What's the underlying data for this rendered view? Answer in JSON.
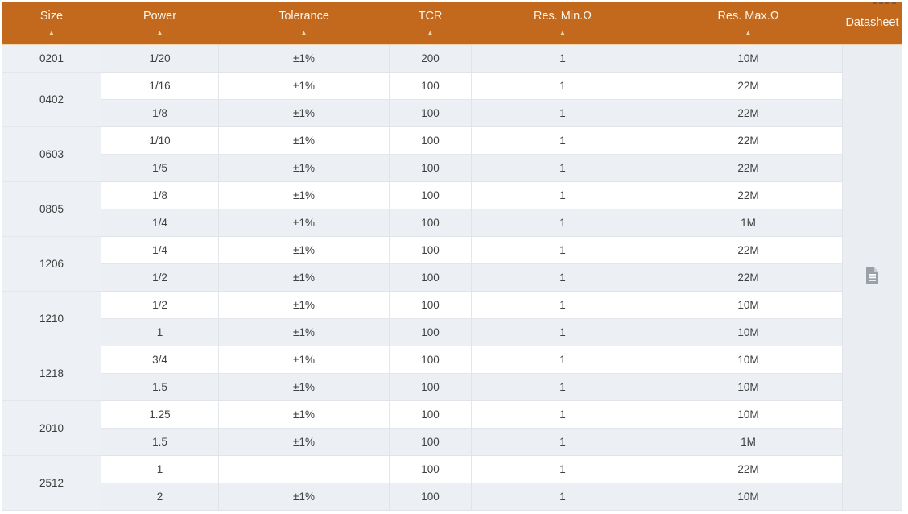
{
  "table": {
    "accent_color": "#c3691d",
    "stripe_color": "#eceff3",
    "header": {
      "sort_arrow": "▲",
      "columns": [
        {
          "label": "Size",
          "sortable": true
        },
        {
          "label": "Power",
          "sortable": true
        },
        {
          "label": "Tolerance",
          "sortable": true
        },
        {
          "label": "TCR",
          "sortable": true
        },
        {
          "label": "Res. Min.Ω",
          "sortable": true
        },
        {
          "label": "Res. Max.Ω",
          "sortable": true
        },
        {
          "label": "Datasheet",
          "sortable": false
        }
      ]
    },
    "groups": [
      {
        "size": "0201",
        "rows": [
          [
            "1/20",
            "±1%",
            "200",
            "1",
            "10M"
          ]
        ]
      },
      {
        "size": "0402",
        "rows": [
          [
            "1/16",
            "±1%",
            "100",
            "1",
            "22M"
          ],
          [
            "1/8",
            "±1%",
            "100",
            "1",
            "22M"
          ]
        ]
      },
      {
        "size": "0603",
        "rows": [
          [
            "1/10",
            "±1%",
            "100",
            "1",
            "22M"
          ],
          [
            "1/5",
            "±1%",
            "100",
            "1",
            "22M"
          ]
        ]
      },
      {
        "size": "0805",
        "rows": [
          [
            "1/8",
            "±1%",
            "100",
            "1",
            "22M"
          ],
          [
            "1/4",
            "±1%",
            "100",
            "1",
            "1M"
          ]
        ]
      },
      {
        "size": "1206",
        "rows": [
          [
            "1/4",
            "±1%",
            "100",
            "1",
            "22M"
          ],
          [
            "1/2",
            "±1%",
            "100",
            "1",
            "22M"
          ]
        ]
      },
      {
        "size": "1210",
        "rows": [
          [
            "1/2",
            "±1%",
            "100",
            "1",
            "10M"
          ],
          [
            "1",
            "±1%",
            "100",
            "1",
            "10M"
          ]
        ]
      },
      {
        "size": "1218",
        "rows": [
          [
            "3/4",
            "±1%",
            "100",
            "1",
            "10M"
          ],
          [
            "1.5",
            "±1%",
            "100",
            "1",
            "10M"
          ]
        ]
      },
      {
        "size": "2010",
        "rows": [
          [
            "1.25",
            "±1%",
            "100",
            "1",
            "10M"
          ],
          [
            "1.5",
            "±1%",
            "100",
            "1",
            "1M"
          ]
        ]
      },
      {
        "size": "2512",
        "rows": [
          [
            "1",
            "",
            "100",
            "1",
            "22M"
          ],
          [
            "2",
            "±1%",
            "100",
            "1",
            "10M"
          ]
        ]
      }
    ],
    "column_cell_names": [
      "power-cell",
      "tolerance-cell",
      "tcr-cell",
      "res-min-cell",
      "res-max-cell"
    ],
    "datasheet": {
      "icon": "document-icon"
    }
  }
}
